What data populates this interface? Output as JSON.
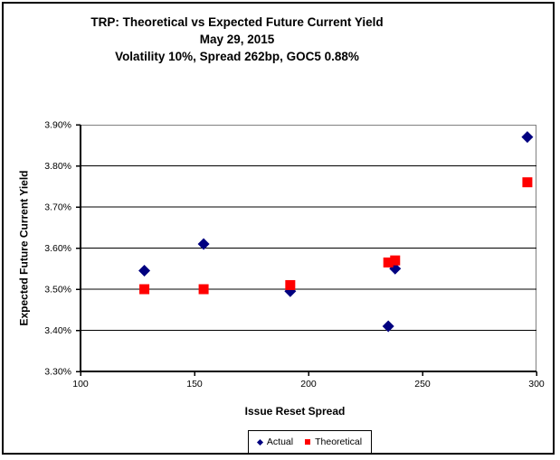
{
  "chart_data": {
    "type": "scatter",
    "title": "TRP: Theoretical vs Expected Future Current Yield",
    "subtitle_date": "May 29, 2015",
    "subtitle_params": "Volatility 10%, Spread 262bp, GOC5 0.88%",
    "xlabel": "Issue Reset Spread",
    "ylabel": "Expected Future Current Yield",
    "xlim": [
      100,
      300
    ],
    "ylim": [
      3.3,
      3.9
    ],
    "x_ticks": [
      {
        "value": 100,
        "label": "100"
      },
      {
        "value": 150,
        "label": "150"
      },
      {
        "value": 200,
        "label": "200"
      },
      {
        "value": 250,
        "label": "250"
      },
      {
        "value": 300,
        "label": "300"
      }
    ],
    "y_ticks": [
      {
        "value": 3.9,
        "label": "3.90%"
      },
      {
        "value": 3.8,
        "label": "3.80%"
      },
      {
        "value": 3.7,
        "label": "3.70%"
      },
      {
        "value": 3.6,
        "label": "3.60%"
      },
      {
        "value": 3.5,
        "label": "3.50%"
      },
      {
        "value": 3.4,
        "label": "3.40%"
      },
      {
        "value": 3.3,
        "label": "3.30%"
      }
    ],
    "grid": "horizontal-only",
    "legend_position": "bottom-center",
    "series": [
      {
        "name": "Actual",
        "marker": "diamond",
        "color": "#000080",
        "points": [
          [
            128,
            3.545
          ],
          [
            154,
            3.61
          ],
          [
            192,
            3.495
          ],
          [
            235,
            3.41
          ],
          [
            238,
            3.55
          ],
          [
            296,
            3.87
          ]
        ]
      },
      {
        "name": "Theoretical",
        "marker": "square",
        "color": "#FF0000",
        "points": [
          [
            128,
            3.5
          ],
          [
            154,
            3.5
          ],
          [
            192,
            3.51
          ],
          [
            235,
            3.565
          ],
          [
            238,
            3.57
          ],
          [
            296,
            3.76
          ]
        ]
      }
    ]
  },
  "colors": {
    "background": "#FFFFFF",
    "outer_border": "#000000",
    "plot_border": "#808080",
    "gridline": "#000000",
    "axis": "#000000",
    "text": "#000000"
  }
}
